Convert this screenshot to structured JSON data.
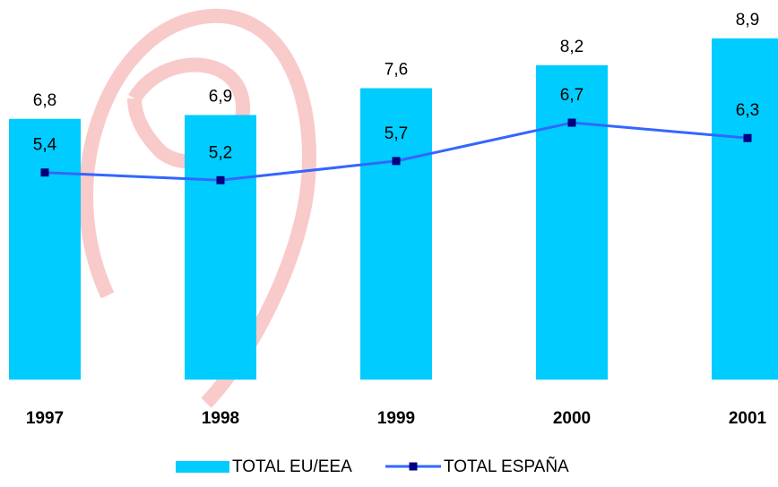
{
  "chart_data": {
    "type": "bar-line",
    "categories": [
      "1997",
      "1998",
      "1999",
      "2000",
      "2001"
    ],
    "series": [
      {
        "name": "TOTAL EU/EEA",
        "type": "bar",
        "color": "#00ccff",
        "values": [
          6.8,
          6.9,
          7.6,
          8.2,
          8.9
        ],
        "value_labels": [
          "6,8",
          "6,9",
          "7,6",
          "8,2",
          "8,9"
        ]
      },
      {
        "name": "TOTAL ESPAÑA",
        "type": "line",
        "color": "#3366ff",
        "marker_color": "#000080",
        "values": [
          5.4,
          5.2,
          5.7,
          6.7,
          6.3
        ],
        "value_labels": [
          "5,4",
          "5,2",
          "5,7",
          "6,7",
          "6,3"
        ]
      }
    ],
    "ylim": [
      0,
      9.9
    ]
  }
}
